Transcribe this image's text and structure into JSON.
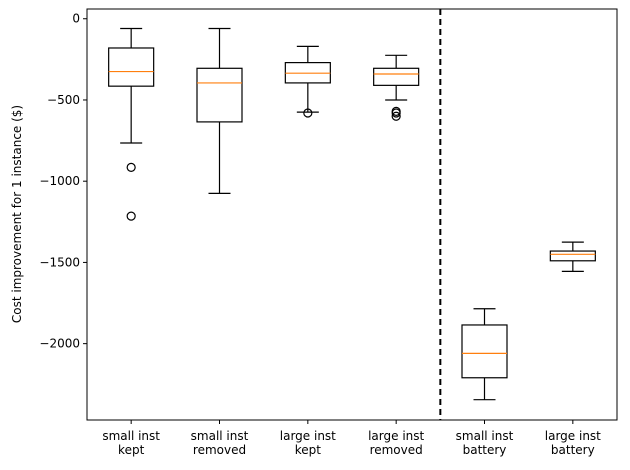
{
  "chart_data": {
    "type": "box",
    "title": "",
    "xlabel": "",
    "ylabel": "Cost improvement for 1 instance ($)",
    "ylim": [
      -2470,
      60
    ],
    "yticks": [
      0,
      -500,
      -1000,
      -1500,
      -2000
    ],
    "ytick_labels": [
      "0",
      "−500",
      "−1000",
      "−1500",
      "−2000"
    ],
    "grid": false,
    "divider_after_index": 3,
    "colors": {
      "box": "#000000",
      "median": "#ff7f0e",
      "divider": "#000000"
    },
    "boxes": [
      {
        "label_lines": [
          "small inst",
          "kept"
        ],
        "whisker_low": -765,
        "q1": -415,
        "median": -325,
        "q3": -180,
        "whisker_high": -60,
        "outliers": [
          -915,
          -1215
        ]
      },
      {
        "label_lines": [
          "small inst",
          "removed"
        ],
        "whisker_low": -1075,
        "q1": -635,
        "median": -395,
        "q3": -305,
        "whisker_high": -60,
        "outliers": []
      },
      {
        "label_lines": [
          "large inst",
          "kept"
        ],
        "whisker_low": -575,
        "q1": -395,
        "median": -335,
        "q3": -270,
        "whisker_high": -170,
        "outliers": [
          -580
        ]
      },
      {
        "label_lines": [
          "large inst",
          "removed"
        ],
        "whisker_low": -500,
        "q1": -410,
        "median": -340,
        "q3": -305,
        "whisker_high": -225,
        "outliers": [
          -570,
          -580,
          -600
        ]
      },
      {
        "label_lines": [
          "small inst",
          "battery"
        ],
        "whisker_low": -2345,
        "q1": -2210,
        "median": -2060,
        "q3": -1885,
        "whisker_high": -1785,
        "outliers": []
      },
      {
        "label_lines": [
          "large inst",
          "battery"
        ],
        "whisker_low": -1555,
        "q1": -1490,
        "median": -1450,
        "q3": -1430,
        "whisker_high": -1375,
        "outliers": []
      }
    ]
  }
}
